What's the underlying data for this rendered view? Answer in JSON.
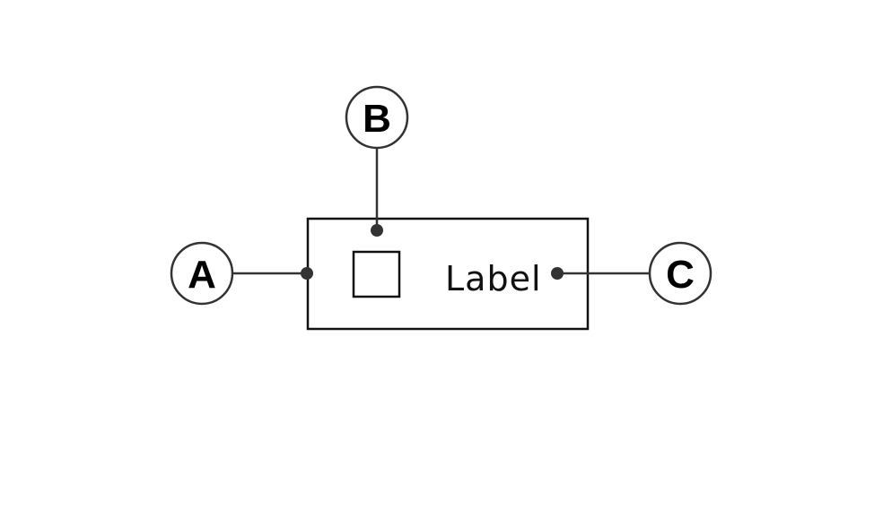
{
  "component": {
    "label": "Label"
  },
  "callouts": [
    {
      "id": "A",
      "letter": "A",
      "target": "box-left-edge"
    },
    {
      "id": "B",
      "letter": "B",
      "target": "checkbox"
    },
    {
      "id": "C",
      "letter": "C",
      "target": "label-text"
    }
  ],
  "colors": {
    "stroke": "#333333",
    "box_stroke": "#111111",
    "text": "#000000"
  }
}
